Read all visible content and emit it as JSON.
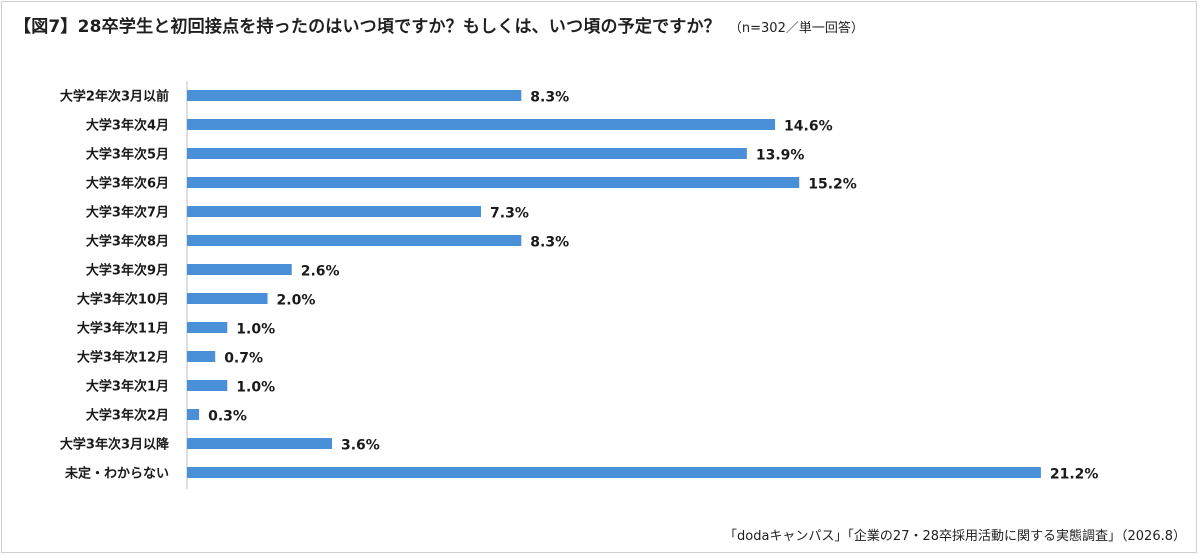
{
  "title": {
    "main": "【図7】28卒学生と初回接点を持ったのはいつ頃ですか？もしくは、いつ頃の予定ですか？",
    "note": "（n=302／単一回答）"
  },
  "source": "「dodaキャンパス」「企業の27・28卒採用活動に関する実態調査」（2026.8）",
  "colors": {
    "bar": "#4a90d9",
    "highlight_label": "#e03030",
    "axis": "#bfbfbf"
  },
  "chart_data": {
    "type": "bar",
    "orientation": "horizontal",
    "categories": [
      "大学2年次3月以前",
      "大学3年次4月",
      "大学3年次5月",
      "大学3年次6月",
      "大学3年次7月",
      "大学3年次8月",
      "大学3年次9月",
      "大学3年次10月",
      "大学3年次11月",
      "大学3年次12月",
      "大学3年次1月",
      "大学3年次2月",
      "大学3年次3月以降",
      "未定・わからない"
    ],
    "values": [
      8.3,
      14.6,
      13.9,
      15.2,
      7.3,
      8.3,
      2.6,
      2.0,
      1.0,
      0.7,
      1.0,
      0.3,
      3.6,
      21.2
    ],
    "value_labels": [
      "8.3%",
      "14.6%",
      "13.9%",
      "15.2%",
      "7.3%",
      "8.3%",
      "2.6%",
      "2.0%",
      "1.0%",
      "0.7%",
      "1.0%",
      "0.3%",
      "3.6%",
      "21.2%"
    ],
    "highlight_index": 0,
    "xlim": [
      0,
      21.6
    ],
    "grid": false,
    "legend": "none"
  }
}
